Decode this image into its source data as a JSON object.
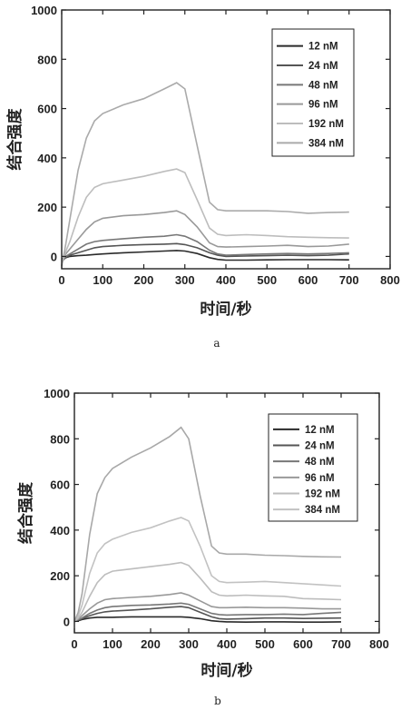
{
  "chart_data": [
    {
      "type": "line",
      "panel_label": "a",
      "xlabel": "时间/秒",
      "ylabel": "结合强度",
      "xlim": [
        0,
        800
      ],
      "ylim": [
        -50,
        1000
      ],
      "xticks": [
        0,
        100,
        200,
        300,
        400,
        500,
        600,
        700,
        800
      ],
      "yticks": [
        0,
        200,
        400,
        600,
        800,
        1000
      ],
      "legend_position": "top-right",
      "grid": false,
      "series": [
        {
          "name": "12 nM",
          "color": "#2a2a2a",
          "x": [
            0,
            10,
            20,
            40,
            60,
            80,
            100,
            150,
            200,
            250,
            280,
            300,
            330,
            360,
            380,
            400,
            450,
            500,
            550,
            600,
            650,
            700
          ],
          "y": [
            -10,
            -5,
            0,
            3,
            5,
            8,
            10,
            15,
            18,
            22,
            24,
            22,
            12,
            -5,
            -12,
            -15,
            -15,
            -14,
            -13,
            -13,
            -13,
            -14
          ]
        },
        {
          "name": "24 nM",
          "color": "#555555",
          "x": [
            0,
            10,
            20,
            40,
            60,
            80,
            100,
            150,
            200,
            250,
            280,
            300,
            330,
            360,
            380,
            400,
            450,
            500,
            550,
            600,
            650,
            700
          ],
          "y": [
            -20,
            -5,
            5,
            15,
            25,
            35,
            40,
            45,
            48,
            50,
            52,
            48,
            35,
            15,
            5,
            0,
            2,
            3,
            5,
            3,
            5,
            10
          ]
        },
        {
          "name": "48 nM",
          "color": "#777777",
          "x": [
            0,
            10,
            20,
            40,
            60,
            80,
            100,
            150,
            200,
            250,
            280,
            300,
            330,
            360,
            380,
            400,
            450,
            500,
            550,
            600,
            650,
            700
          ],
          "y": [
            -20,
            0,
            10,
            30,
            50,
            60,
            65,
            72,
            78,
            82,
            88,
            82,
            60,
            25,
            10,
            5,
            8,
            10,
            12,
            10,
            12,
            15
          ]
        },
        {
          "name": "96 nM",
          "color": "#999999",
          "x": [
            0,
            10,
            20,
            40,
            60,
            80,
            100,
            150,
            200,
            250,
            280,
            300,
            330,
            360,
            380,
            400,
            450,
            500,
            550,
            600,
            650,
            700
          ],
          "y": [
            -30,
            10,
            30,
            70,
            110,
            140,
            155,
            165,
            170,
            178,
            185,
            170,
            120,
            55,
            40,
            38,
            40,
            42,
            45,
            40,
            42,
            50
          ]
        },
        {
          "name": "192 nM",
          "color": "#bdbdbd",
          "x": [
            0,
            10,
            20,
            40,
            60,
            80,
            100,
            150,
            200,
            250,
            280,
            300,
            330,
            360,
            380,
            400,
            450,
            500,
            550,
            600,
            650,
            700
          ],
          "y": [
            -30,
            20,
            60,
            160,
            240,
            280,
            295,
            310,
            325,
            345,
            355,
            340,
            230,
            115,
            90,
            85,
            88,
            85,
            80,
            78,
            76,
            75
          ]
        },
        {
          "name": "384 nM",
          "color": "#aaaaaa",
          "x": [
            0,
            10,
            20,
            40,
            60,
            80,
            100,
            150,
            200,
            250,
            280,
            300,
            330,
            360,
            380,
            400,
            450,
            500,
            550,
            600,
            650,
            700
          ],
          "y": [
            -40,
            50,
            150,
            350,
            480,
            550,
            580,
            615,
            640,
            680,
            705,
            680,
            450,
            220,
            190,
            185,
            185,
            185,
            182,
            175,
            178,
            180
          ]
        }
      ]
    },
    {
      "type": "line",
      "panel_label": "b",
      "xlabel": "时间/秒",
      "ylabel": "结合强度",
      "xlim": [
        0,
        800
      ],
      "ylim": [
        -50,
        1000
      ],
      "xticks": [
        0,
        100,
        200,
        300,
        400,
        500,
        600,
        700,
        800
      ],
      "yticks": [
        0,
        200,
        400,
        600,
        800,
        1000
      ],
      "legend_position": "top-right",
      "grid": false,
      "series": [
        {
          "name": "12 nM",
          "color": "#2a2a2a",
          "x": [
            0,
            10,
            20,
            40,
            60,
            80,
            100,
            150,
            200,
            250,
            280,
            300,
            330,
            360,
            380,
            400,
            450,
            500,
            550,
            600,
            650,
            700
          ],
          "y": [
            0,
            3,
            8,
            15,
            18,
            18,
            18,
            20,
            20,
            20,
            20,
            18,
            12,
            3,
            0,
            -2,
            -3,
            -2,
            -2,
            -3,
            -3,
            -2
          ]
        },
        {
          "name": "24 nM",
          "color": "#555555",
          "x": [
            0,
            10,
            20,
            40,
            60,
            80,
            100,
            150,
            200,
            250,
            280,
            300,
            330,
            360,
            380,
            400,
            450,
            500,
            550,
            600,
            650,
            700
          ],
          "y": [
            0,
            5,
            12,
            25,
            35,
            42,
            45,
            50,
            55,
            62,
            65,
            60,
            40,
            20,
            12,
            10,
            12,
            15,
            15,
            13,
            14,
            15
          ]
        },
        {
          "name": "48 nM",
          "color": "#777777",
          "x": [
            0,
            10,
            20,
            40,
            60,
            80,
            100,
            150,
            200,
            250,
            280,
            300,
            330,
            360,
            380,
            400,
            450,
            500,
            550,
            600,
            650,
            700
          ],
          "y": [
            0,
            8,
            15,
            35,
            50,
            60,
            65,
            70,
            72,
            76,
            80,
            75,
            55,
            35,
            30,
            28,
            30,
            30,
            32,
            30,
            35,
            40
          ]
        },
        {
          "name": "96 nM",
          "color": "#999999",
          "x": [
            0,
            10,
            20,
            40,
            60,
            80,
            100,
            150,
            200,
            250,
            280,
            300,
            330,
            360,
            380,
            400,
            450,
            500,
            550,
            600,
            650,
            700
          ],
          "y": [
            0,
            10,
            25,
            55,
            80,
            95,
            100,
            105,
            110,
            118,
            125,
            115,
            90,
            65,
            60,
            60,
            62,
            60,
            60,
            58,
            55,
            55
          ]
        },
        {
          "name": "192 nM",
          "color": "#bdbdbd",
          "x": [
            0,
            10,
            20,
            40,
            60,
            80,
            100,
            150,
            200,
            250,
            280,
            300,
            330,
            360,
            380,
            400,
            450,
            500,
            550,
            600,
            650,
            700
          ],
          "y": [
            0,
            15,
            40,
            110,
            170,
            205,
            220,
            230,
            240,
            250,
            258,
            245,
            190,
            130,
            115,
            112,
            115,
            112,
            110,
            100,
            98,
            95
          ]
        },
        {
          "name": "384 nM",
          "color": "#c2c2c2",
          "x": [
            0,
            10,
            20,
            40,
            60,
            80,
            100,
            150,
            200,
            250,
            280,
            300,
            330,
            360,
            380,
            400,
            450,
            500,
            550,
            600,
            650,
            700
          ],
          "y": [
            0,
            25,
            70,
            210,
            300,
            340,
            360,
            390,
            410,
            440,
            455,
            440,
            330,
            200,
            175,
            170,
            172,
            175,
            170,
            165,
            160,
            155
          ]
        },
        {
          "name": "",
          "color": "#a8a8a8",
          "x": [
            0,
            10,
            20,
            40,
            60,
            80,
            100,
            150,
            200,
            250,
            280,
            300,
            330,
            360,
            380,
            400,
            450,
            500,
            550,
            600,
            650,
            700
          ],
          "y": [
            0,
            40,
            120,
            380,
            560,
            630,
            670,
            720,
            760,
            810,
            850,
            800,
            550,
            330,
            300,
            295,
            295,
            290,
            288,
            285,
            283,
            282
          ]
        }
      ]
    }
  ]
}
